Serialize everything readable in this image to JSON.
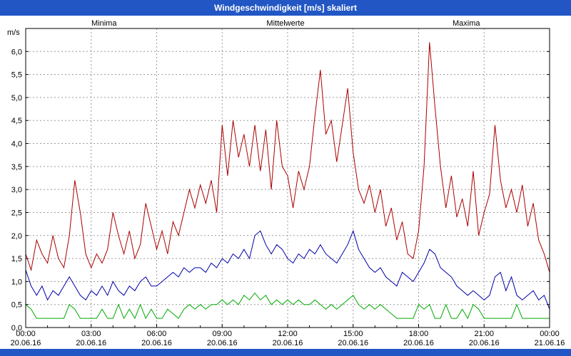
{
  "title_bar": {
    "title": "Windgeschwindigkeit [m/s] skaliert",
    "background_color": "#2156c4",
    "text_color": "#ffffff"
  },
  "chart_data": {
    "type": "line",
    "title": "Windgeschwindigkeit [m/s] skaliert",
    "ylabel": "m/s",
    "ylim": [
      0,
      6.5
    ],
    "ytick_step": 0.5,
    "ytick_labels": [
      "0,0",
      "0,5",
      "1,0",
      "1,5",
      "2,0",
      "2,5",
      "3,0",
      "3,5",
      "4,0",
      "4,5",
      "5,0",
      "5,5",
      "6,0"
    ],
    "x_range": [
      0,
      24
    ],
    "x_step_hours": 0.25,
    "xtick_hours": [
      0,
      3,
      6,
      9,
      12,
      15,
      18,
      21,
      24
    ],
    "xtick_labels": [
      "00:00",
      "03:00",
      "06:00",
      "09:00",
      "12:00",
      "15:00",
      "18:00",
      "21:00",
      "00:00"
    ],
    "xtick_dates": [
      "20.06.16",
      "20.06.16",
      "20.06.16",
      "20.06.16",
      "20.06.16",
      "20.06.16",
      "20.06.16",
      "20.06.16",
      "21.06.16"
    ],
    "grid": true,
    "grid_color": "#9a9a9a",
    "legend_position": "top",
    "series": [
      {
        "name": "Minima",
        "color": "#00aa00",
        "values": [
          0.5,
          0.4,
          0.2,
          0.2,
          0.2,
          0.2,
          0.2,
          0.2,
          0.5,
          0.4,
          0.2,
          0.2,
          0.2,
          0.2,
          0.4,
          0.2,
          0.2,
          0.5,
          0.2,
          0.4,
          0.2,
          0.5,
          0.2,
          0.4,
          0.2,
          0.2,
          0.4,
          0.3,
          0.2,
          0.4,
          0.5,
          0.4,
          0.5,
          0.4,
          0.5,
          0.5,
          0.6,
          0.5,
          0.6,
          0.5,
          0.7,
          0.6,
          0.75,
          0.6,
          0.7,
          0.5,
          0.6,
          0.5,
          0.6,
          0.5,
          0.6,
          0.5,
          0.5,
          0.6,
          0.5,
          0.4,
          0.5,
          0.4,
          0.5,
          0.6,
          0.7,
          0.5,
          0.4,
          0.5,
          0.4,
          0.5,
          0.4,
          0.3,
          0.2,
          0.2,
          0.2,
          0.2,
          0.5,
          0.4,
          0.5,
          0.2,
          0.2,
          0.5,
          0.2,
          0.2,
          0.4,
          0.2,
          0.5,
          0.4,
          0.2,
          0.2,
          0.2,
          0.2,
          0.2,
          0.2,
          0.5,
          0.2,
          0.2,
          0.2,
          0.2,
          0.2,
          0.2
        ]
      },
      {
        "name": "Mittelwerte",
        "color": "#0000aa",
        "values": [
          1.25,
          0.9,
          0.7,
          0.9,
          0.6,
          0.8,
          0.7,
          0.9,
          1.1,
          0.9,
          0.7,
          0.6,
          0.8,
          0.7,
          0.9,
          0.7,
          1.0,
          0.8,
          0.7,
          0.9,
          0.8,
          1.0,
          1.1,
          0.9,
          0.9,
          1.0,
          1.1,
          1.2,
          1.1,
          1.3,
          1.2,
          1.3,
          1.3,
          1.2,
          1.4,
          1.3,
          1.5,
          1.4,
          1.6,
          1.5,
          1.7,
          1.5,
          2.0,
          2.1,
          1.8,
          1.6,
          1.8,
          1.7,
          1.5,
          1.4,
          1.6,
          1.5,
          1.7,
          1.6,
          1.8,
          1.6,
          1.5,
          1.4,
          1.6,
          1.8,
          2.1,
          1.7,
          1.5,
          1.3,
          1.2,
          1.3,
          1.1,
          1.0,
          0.9,
          1.2,
          1.1,
          1.0,
          1.2,
          1.4,
          1.7,
          1.6,
          1.3,
          1.2,
          1.1,
          0.9,
          0.8,
          0.7,
          0.8,
          0.7,
          0.6,
          0.7,
          1.1,
          1.2,
          0.8,
          1.1,
          0.7,
          0.6,
          0.7,
          0.8,
          0.6,
          0.7,
          0.4
        ]
      },
      {
        "name": "Maxima",
        "color": "#aa0000",
        "values": [
          1.6,
          1.25,
          1.9,
          1.6,
          1.4,
          2.0,
          1.5,
          1.3,
          2.0,
          3.2,
          2.5,
          1.6,
          1.3,
          1.6,
          1.4,
          1.7,
          2.5,
          2.0,
          1.6,
          2.1,
          1.5,
          1.8,
          2.7,
          2.2,
          1.7,
          2.1,
          1.6,
          2.3,
          2.0,
          2.5,
          3.0,
          2.6,
          3.1,
          2.7,
          3.2,
          2.5,
          4.4,
          3.3,
          4.5,
          3.7,
          4.2,
          3.5,
          4.4,
          3.4,
          4.3,
          3.0,
          4.5,
          3.5,
          3.3,
          2.6,
          3.4,
          3.0,
          3.5,
          4.6,
          5.6,
          4.2,
          4.5,
          3.6,
          4.4,
          5.2,
          3.8,
          3.0,
          2.7,
          3.1,
          2.5,
          3.0,
          2.2,
          2.6,
          1.9,
          2.3,
          1.6,
          1.5,
          2.1,
          3.5,
          6.2,
          4.8,
          3.5,
          2.6,
          3.3,
          2.4,
          2.8,
          2.2,
          3.4,
          2.0,
          2.5,
          2.9,
          4.4,
          3.2,
          2.6,
          3.0,
          2.5,
          3.1,
          2.2,
          2.7,
          1.9,
          1.6,
          1.2
        ]
      }
    ]
  }
}
